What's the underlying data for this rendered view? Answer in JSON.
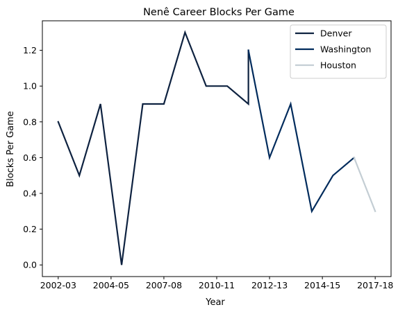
{
  "chart_data": {
    "type": "line",
    "title": "Nenê Career Blocks Per Game",
    "xlabel": "Year",
    "ylabel": "Blocks Per Game",
    "x_tick_labels": [
      "2002-03",
      "2004-05",
      "2007-08",
      "2010-11",
      "2012-13",
      "2014-15",
      "2017-18"
    ],
    "x_tick_positions": [
      0,
      2.5,
      5.0,
      7.5,
      10.0,
      12.5,
      15.0
    ],
    "y_ticks": [
      0.0,
      0.2,
      0.4,
      0.6,
      0.8,
      1.0,
      1.2
    ],
    "y_tick_labels": [
      "0.0",
      "0.2",
      "0.4",
      "0.6",
      "0.8",
      "1.0",
      "1.2"
    ],
    "xlim": [
      -0.75,
      15.75
    ],
    "ylim": [
      -0.065,
      1.365
    ],
    "grid": false,
    "legend_position": "top-right",
    "series": [
      {
        "name": "Denver",
        "color": "#0e2240",
        "points": [
          [
            0,
            0.8
          ],
          [
            1,
            0.5
          ],
          [
            2,
            0.9
          ],
          [
            3,
            0.0
          ],
          [
            4,
            0.9
          ],
          [
            5,
            0.9
          ],
          [
            6,
            1.3
          ],
          [
            7,
            1.0
          ],
          [
            8,
            1.0
          ],
          [
            9,
            0.9
          ],
          [
            9,
            1.2
          ]
        ]
      },
      {
        "name": "Washington",
        "color": "#002b5c",
        "points": [
          [
            9,
            1.2
          ],
          [
            10,
            0.6
          ],
          [
            11,
            0.9
          ],
          [
            12,
            0.3
          ],
          [
            13,
            0.5
          ],
          [
            14,
            0.6
          ]
        ]
      },
      {
        "name": "Houston",
        "color": "#c4ced4",
        "points": [
          [
            14,
            0.6
          ],
          [
            15,
            0.3
          ]
        ]
      }
    ]
  }
}
